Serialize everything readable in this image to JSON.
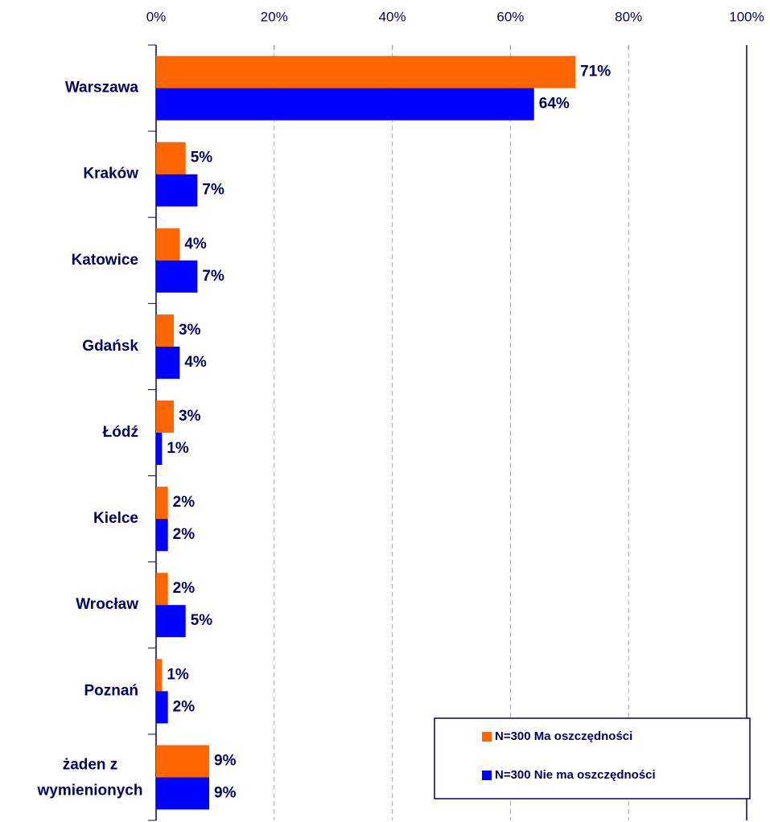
{
  "chart_data": {
    "type": "hbar",
    "categories": [
      "Warszawa",
      "Kraków",
      "Katowice",
      "Gdańsk",
      "Łódź",
      "Kielce",
      "Wrocław",
      "Poznań",
      "żaden z wymienionych"
    ],
    "series": [
      {
        "name": "N=300 Ma oszczędności",
        "color": "#ff6600",
        "values": [
          71,
          5,
          4,
          3,
          3,
          2,
          2,
          1,
          9
        ],
        "value_labels": [
          "71%",
          "5%",
          "4%",
          "3%",
          "3%",
          "2%",
          "2%",
          "1%",
          "9%"
        ]
      },
      {
        "name": "N=300 Nie ma oszczędności",
        "color": "#0000ff",
        "values": [
          64,
          7,
          7,
          4,
          1,
          2,
          5,
          2,
          9
        ],
        "value_labels": [
          "64%",
          "7%",
          "7%",
          "4%",
          "1%",
          "2%",
          "5%",
          "2%",
          "9%"
        ]
      }
    ],
    "xlim": [
      0,
      100
    ],
    "xticks": [
      {
        "value": 0,
        "label": "0%"
      },
      {
        "value": 20,
        "label": "20%"
      },
      {
        "value": 40,
        "label": "40%"
      },
      {
        "value": 60,
        "label": "60%"
      },
      {
        "value": 80,
        "label": "80%"
      },
      {
        "value": 100,
        "label": "100%"
      }
    ],
    "grid": true,
    "legend": "lower right"
  }
}
